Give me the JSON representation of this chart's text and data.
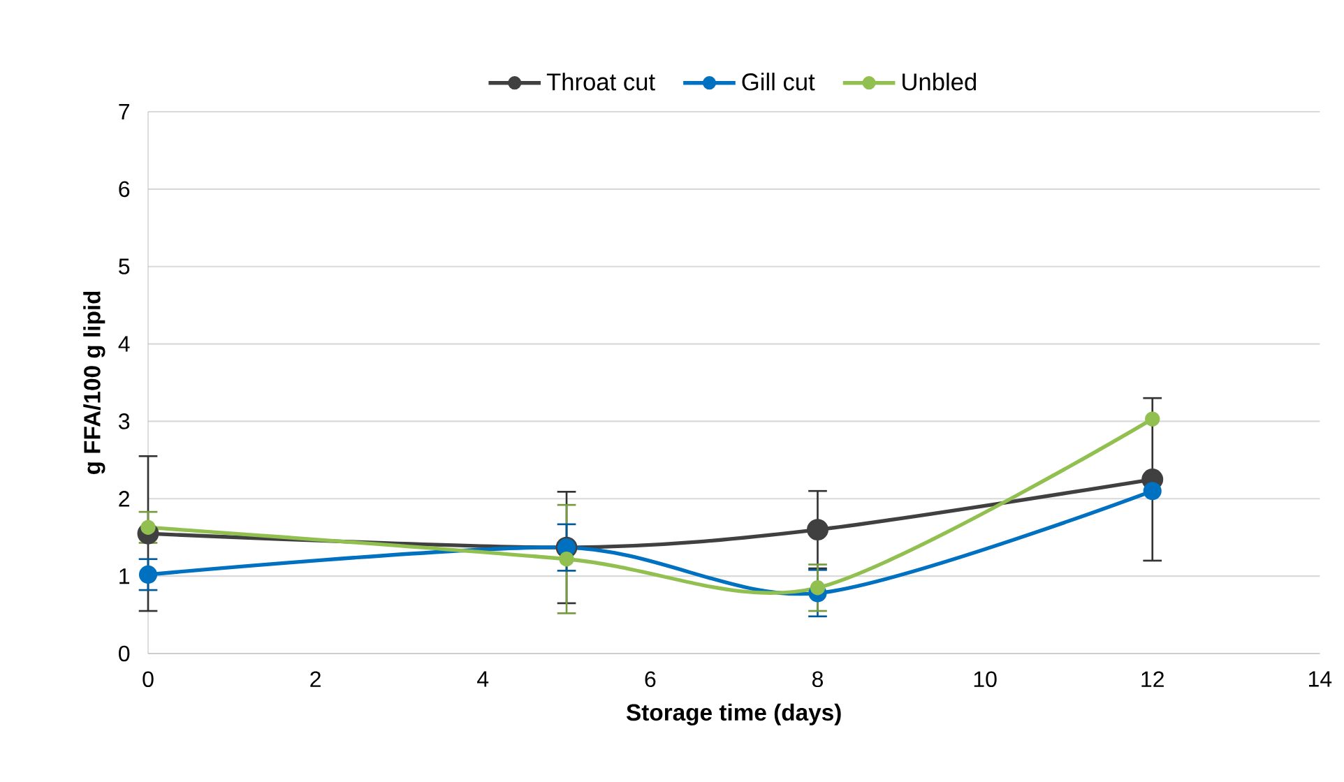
{
  "chart_data": {
    "type": "line",
    "xlabel": "Storage time (days)",
    "ylabel": "g FFA/100 g lipid",
    "x": [
      0,
      5,
      8,
      12
    ],
    "series": [
      {
        "name": "Throat cut",
        "color": "#404040",
        "values": [
          1.55,
          1.37,
          1.6,
          2.25
        ],
        "errors": [
          1.0,
          0.72,
          0.5,
          1.05
        ]
      },
      {
        "name": "Gill cut",
        "color": "#0070c0",
        "values": [
          1.02,
          1.37,
          0.78,
          2.1
        ],
        "errors": [
          0.2,
          0.3,
          0.3,
          null
        ]
      },
      {
        "name": "Unbled",
        "color": "#92c050",
        "values": [
          1.63,
          1.22,
          0.85,
          3.03
        ],
        "errors": [
          0.2,
          0.7,
          0.3,
          null
        ]
      }
    ],
    "xlim": [
      0,
      14
    ],
    "xticks": [
      0,
      2,
      4,
      6,
      8,
      10,
      12,
      14
    ],
    "ylim": [
      0,
      7
    ],
    "yticks": [
      0,
      1,
      2,
      3,
      4,
      5,
      6,
      7
    ],
    "grid": "y",
    "legend": "top",
    "marker": "circle",
    "line_style": "solid"
  }
}
